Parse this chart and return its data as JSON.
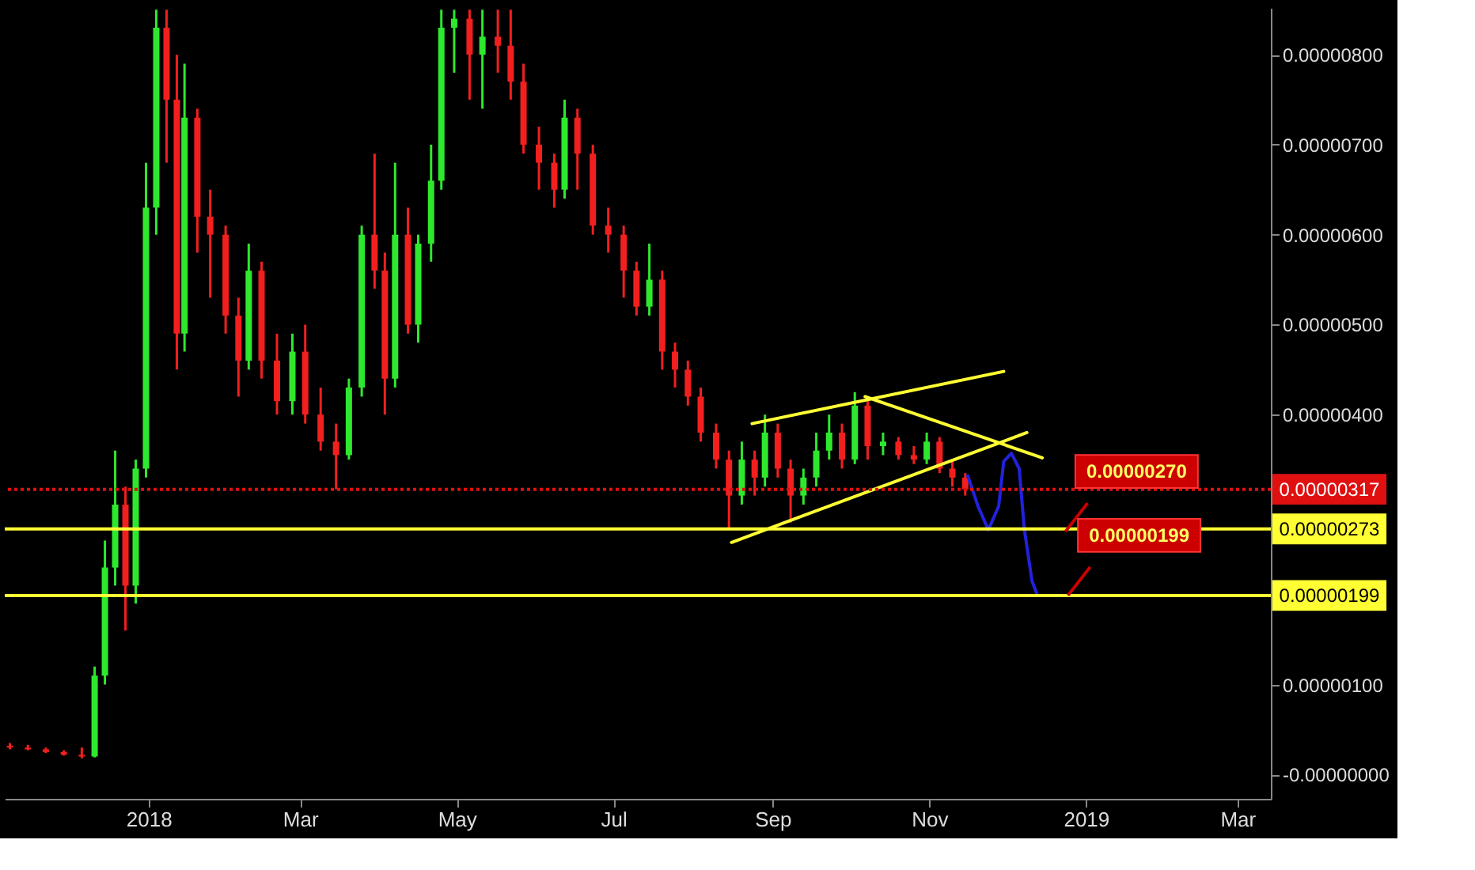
{
  "chart_data": {
    "type": "candlestick",
    "x": [
      "2017-11-08",
      "2017-11-15",
      "2017-11-22",
      "2017-11-29",
      "2017-12-06",
      "2017-12-11",
      "2017-12-15",
      "2017-12-19",
      "2017-12-23",
      "2017-12-27",
      "2017-12-31",
      "2018-01-04",
      "2018-01-08",
      "2018-01-12",
      "2018-01-15",
      "2018-01-20",
      "2018-01-25",
      "2018-01-31",
      "2018-02-05",
      "2018-02-09",
      "2018-02-14",
      "2018-02-20",
      "2018-02-26",
      "2018-03-03",
      "2018-03-09",
      "2018-03-15",
      "2018-03-20",
      "2018-03-25",
      "2018-03-30",
      "2018-04-03",
      "2018-04-07",
      "2018-04-12",
      "2018-04-16",
      "2018-04-21",
      "2018-04-25",
      "2018-04-30",
      "2018-05-06",
      "2018-05-11",
      "2018-05-17",
      "2018-05-22",
      "2018-05-27",
      "2018-06-02",
      "2018-06-08",
      "2018-06-12",
      "2018-06-17",
      "2018-06-23",
      "2018-06-29",
      "2018-07-05",
      "2018-07-10",
      "2018-07-15",
      "2018-07-20",
      "2018-07-25",
      "2018-07-30",
      "2018-08-04",
      "2018-08-10",
      "2018-08-15",
      "2018-08-20",
      "2018-08-25",
      "2018-08-29",
      "2018-09-03",
      "2018-09-08",
      "2018-09-13",
      "2018-09-18",
      "2018-09-23",
      "2018-09-28",
      "2018-10-03",
      "2018-10-08",
      "2018-10-14",
      "2018-10-20",
      "2018-10-26",
      "2018-10-31",
      "2018-11-05",
      "2018-11-10",
      "2018-11-15"
    ],
    "ohlc": [
      [
        3.2e-07,
        3.5e-07,
        2.8e-07,
        3e-07
      ],
      [
        3e-07,
        3.3e-07,
        2.7e-07,
        2.8e-07
      ],
      [
        2.8e-07,
        3e-07,
        2.4e-07,
        2.5e-07
      ],
      [
        2.5e-07,
        2.7e-07,
        2.1e-07,
        2.2e-07
      ],
      [
        2.2e-07,
        3e-07,
        1.8e-07,
        2e-07
      ],
      [
        2e-07,
        1.2e-06,
        1.9e-07,
        1.1e-06
      ],
      [
        1.1e-06,
        2.6e-06,
        1e-06,
        2.3e-06
      ],
      [
        2.3e-06,
        3.6e-06,
        2.1e-06,
        3e-06
      ],
      [
        3e-06,
        3.2e-06,
        1.6e-06,
        2.1e-06
      ],
      [
        2.1e-06,
        3.5e-06,
        1.9e-06,
        3.4e-06
      ],
      [
        3.4e-06,
        6.8e-06,
        3.3e-06,
        6.3e-06
      ],
      [
        6.3e-06,
        8.5e-06,
        6e-06,
        8.3e-06
      ],
      [
        8.3e-06,
        8.5e-06,
        6.8e-06,
        7.5e-06
      ],
      [
        7.5e-06,
        8e-06,
        4.5e-06,
        4.9e-06
      ],
      [
        4.9e-06,
        7.9e-06,
        4.7e-06,
        7.3e-06
      ],
      [
        7.3e-06,
        7.4e-06,
        5.8e-06,
        6.2e-06
      ],
      [
        6.2e-06,
        6.5e-06,
        5.3e-06,
        6e-06
      ],
      [
        6e-06,
        6.1e-06,
        4.9e-06,
        5.1e-06
      ],
      [
        5.1e-06,
        5.3e-06,
        4.2e-06,
        4.6e-06
      ],
      [
        4.6e-06,
        5.9e-06,
        4.5e-06,
        5.6e-06
      ],
      [
        5.6e-06,
        5.7e-06,
        4.4e-06,
        4.6e-06
      ],
      [
        4.6e-06,
        4.9e-06,
        4e-06,
        4.15e-06
      ],
      [
        4.15e-06,
        4.9e-06,
        4e-06,
        4.7e-06
      ],
      [
        4.7e-06,
        5e-06,
        3.9e-06,
        4e-06
      ],
      [
        4e-06,
        4.3e-06,
        3.6e-06,
        3.7e-06
      ],
      [
        3.7e-06,
        3.9e-06,
        3.17e-06,
        3.55e-06
      ],
      [
        3.55e-06,
        4.4e-06,
        3.5e-06,
        4.3e-06
      ],
      [
        4.3e-06,
        6.1e-06,
        4.2e-06,
        6e-06
      ],
      [
        6e-06,
        6.9e-06,
        5.4e-06,
        5.6e-06
      ],
      [
        5.6e-06,
        5.8e-06,
        4e-06,
        4.4e-06
      ],
      [
        4.4e-06,
        6.8e-06,
        4.3e-06,
        6e-06
      ],
      [
        6e-06,
        6.3e-06,
        4.9e-06,
        5e-06
      ],
      [
        5e-06,
        6e-06,
        4.8e-06,
        5.9e-06
      ],
      [
        5.9e-06,
        7e-06,
        5.7e-06,
        6.6e-06
      ],
      [
        6.6e-06,
        8.5e-06,
        6.5e-06,
        8.3e-06
      ],
      [
        8.3e-06,
        8.5e-06,
        7.8e-06,
        8.4e-06
      ],
      [
        8.4e-06,
        8.5e-06,
        7.5e-06,
        8e-06
      ],
      [
        8e-06,
        8.5e-06,
        7.4e-06,
        8.2e-06
      ],
      [
        8.2e-06,
        8.5e-06,
        7.8e-06,
        8.1e-06
      ],
      [
        8.1e-06,
        8.5e-06,
        7.5e-06,
        7.7e-06
      ],
      [
        7.7e-06,
        7.9e-06,
        6.9e-06,
        7e-06
      ],
      [
        7e-06,
        7.2e-06,
        6.5e-06,
        6.8e-06
      ],
      [
        6.8e-06,
        6.9e-06,
        6.3e-06,
        6.5e-06
      ],
      [
        6.5e-06,
        7.5e-06,
        6.4e-06,
        7.3e-06
      ],
      [
        7.3e-06,
        7.4e-06,
        6.5e-06,
        6.9e-06
      ],
      [
        6.9e-06,
        7e-06,
        6e-06,
        6.1e-06
      ],
      [
        6.1e-06,
        6.3e-06,
        5.8e-06,
        6e-06
      ],
      [
        6e-06,
        6.1e-06,
        5.3e-06,
        5.6e-06
      ],
      [
        5.6e-06,
        5.7e-06,
        5.1e-06,
        5.2e-06
      ],
      [
        5.2e-06,
        5.9e-06,
        5.1e-06,
        5.5e-06
      ],
      [
        5.5e-06,
        5.6e-06,
        4.5e-06,
        4.7e-06
      ],
      [
        4.7e-06,
        4.8e-06,
        4.3e-06,
        4.5e-06
      ],
      [
        4.5e-06,
        4.6e-06,
        4.1e-06,
        4.2e-06
      ],
      [
        4.2e-06,
        4.3e-06,
        3.7e-06,
        3.8e-06
      ],
      [
        3.8e-06,
        3.9e-06,
        3.4e-06,
        3.5e-06
      ],
      [
        3.5e-06,
        3.6e-06,
        2.73e-06,
        3.1e-06
      ],
      [
        3.1e-06,
        3.7e-06,
        3e-06,
        3.5e-06
      ],
      [
        3.5e-06,
        3.6e-06,
        3.1e-06,
        3.3e-06
      ],
      [
        3.3e-06,
        4e-06,
        3.2e-06,
        3.8e-06
      ],
      [
        3.8e-06,
        3.9e-06,
        3.3e-06,
        3.4e-06
      ],
      [
        3.4e-06,
        3.5e-06,
        2.8e-06,
        3.1e-06
      ],
      [
        3.1e-06,
        3.4e-06,
        3e-06,
        3.3e-06
      ],
      [
        3.3e-06,
        3.8e-06,
        3.2e-06,
        3.6e-06
      ],
      [
        3.6e-06,
        4e-06,
        3.5e-06,
        3.8e-06
      ],
      [
        3.8e-06,
        3.9e-06,
        3.4e-06,
        3.5e-06
      ],
      [
        3.5e-06,
        4.25e-06,
        3.45e-06,
        4.1e-06
      ],
      [
        4.1e-06,
        4.15e-06,
        3.5e-06,
        3.65e-06
      ],
      [
        3.65e-06,
        3.8e-06,
        3.55e-06,
        3.7e-06
      ],
      [
        3.7e-06,
        3.75e-06,
        3.5e-06,
        3.55e-06
      ],
      [
        3.55e-06,
        3.65e-06,
        3.45e-06,
        3.5e-06
      ],
      [
        3.5e-06,
        3.8e-06,
        3.45e-06,
        3.7e-06
      ],
      [
        3.7e-06,
        3.75e-06,
        3.35e-06,
        3.4e-06
      ],
      [
        3.4e-06,
        3.5e-06,
        3.2e-06,
        3.3e-06
      ],
      [
        3.3e-06,
        3.35e-06,
        3.1e-06,
        3.17e-06
      ]
    ],
    "colors": [
      "#f21f1f",
      "#f21f1f",
      "#f21f1f",
      "#f21f1f",
      "#f21f1f",
      "#2ee82e",
      "#2ee82e",
      "#2ee82e",
      "#f21f1f",
      "#2ee82e",
      "#2ee82e",
      "#2ee82e",
      "#f21f1f",
      "#f21f1f",
      "#2ee82e",
      "#f21f1f",
      "#f21f1f",
      "#f21f1f",
      "#f21f1f",
      "#2ee82e",
      "#f21f1f",
      "#f21f1f",
      "#2ee82e",
      "#f21f1f",
      "#f21f1f",
      "#f21f1f",
      "#2ee82e",
      "#2ee82e",
      "#f21f1f",
      "#f21f1f",
      "#2ee82e",
      "#f21f1f",
      "#2ee82e",
      "#2ee82e",
      "#2ee82e",
      "#2ee82e",
      "#f21f1f",
      "#2ee82e",
      "#f21f1f",
      "#f21f1f",
      "#f21f1f",
      "#f21f1f",
      "#f21f1f",
      "#2ee82e",
      "#f21f1f",
      "#f21f1f",
      "#f21f1f",
      "#f21f1f",
      "#f21f1f",
      "#2ee82e",
      "#f21f1f",
      "#f21f1f",
      "#f21f1f",
      "#f21f1f",
      "#f21f1f",
      "#f21f1f",
      "#2ee82e",
      "#f21f1f",
      "#2ee82e",
      "#f21f1f",
      "#f21f1f",
      "#2ee82e",
      "#2ee82e",
      "#2ee82e",
      "#f21f1f",
      "#2ee82e",
      "#f21f1f",
      "#2ee82e",
      "#f21f1f",
      "#f21f1f",
      "#2ee82e",
      "#f21f1f",
      "#f21f1f",
      "#f21f1f"
    ],
    "series": [
      {
        "type": "line",
        "color": "#ffff33",
        "x": [
          "2018-08-24",
          "2018-11-30"
        ],
        "values": [
          3.9e-06,
          4.48e-06
        ]
      },
      {
        "type": "line",
        "color": "#ffff33",
        "x": [
          "2018-10-07",
          "2018-12-15"
        ],
        "values": [
          4.2e-06,
          3.52e-06
        ]
      },
      {
        "type": "line",
        "color": "#ffff33",
        "x": [
          "2018-08-16",
          "2018-12-09"
        ],
        "values": [
          2.58e-06,
          3.8e-06
        ]
      },
      {
        "type": "line",
        "color": "#2222dd",
        "x": [
          "2018-11-16",
          "2018-11-20",
          "2018-11-24",
          "2018-11-28",
          "2018-11-30",
          "2018-12-03",
          "2018-12-06",
          "2018-12-08",
          "2018-12-11",
          "2018-12-13"
        ],
        "values": [
          3.32e-06,
          2.98e-06,
          2.72e-06,
          2.98e-06,
          3.48e-06,
          3.57e-06,
          3.4e-06,
          2.73e-06,
          2.15e-06,
          2e-06
        ]
      }
    ],
    "ref_lines": [
      {
        "axis": "y",
        "value": 3.17e-06,
        "label": "0.00000317",
        "color": "#e01010",
        "line_style": "dotted"
      },
      {
        "axis": "y",
        "value": 2.73e-06,
        "label": "0.00000273",
        "color": "#ffff33",
        "line_style": "solid"
      },
      {
        "axis": "y",
        "value": 1.99e-06,
        "label": "0.00000199",
        "color": "#ffff33",
        "line_style": "solid"
      }
    ],
    "annotations": [
      {
        "text": "0.00000270",
        "x": "2018-12-24",
        "y": 2.7e-06
      },
      {
        "text": "0.00000199",
        "x": "2018-12-25",
        "y": 1.99e-06
      }
    ],
    "xlim": [
      "2017-11-06",
      "2019-03-14"
    ],
    "xticks": [
      {
        "value": "2018-01-01",
        "label": "2018"
      },
      {
        "value": "2018-03-01",
        "label": "Mar"
      },
      {
        "value": "2018-05-01",
        "label": "May"
      },
      {
        "value": "2018-07-01",
        "label": "Jul"
      },
      {
        "value": "2018-09-01",
        "label": "Sep"
      },
      {
        "value": "2018-11-01",
        "label": "Nov"
      },
      {
        "value": "2019-01-01",
        "label": "2019"
      },
      {
        "value": "2019-03-01",
        "label": "Mar"
      }
    ],
    "ylim": [
      -2.7e-07,
      8.52e-06
    ],
    "yticks": [
      {
        "value": 0,
        "label": "-0.00000000"
      },
      {
        "value": 1e-06,
        "label": "0.00000100"
      },
      {
        "value": 4e-06,
        "label": "0.00000400"
      },
      {
        "value": 5e-06,
        "label": "0.00000500"
      },
      {
        "value": 6e-06,
        "label": "0.00000600"
      },
      {
        "value": 7e-06,
        "label": "0.00000700"
      },
      {
        "value": 8e-06,
        "label": "0.00000800"
      }
    ],
    "grid": false
  }
}
